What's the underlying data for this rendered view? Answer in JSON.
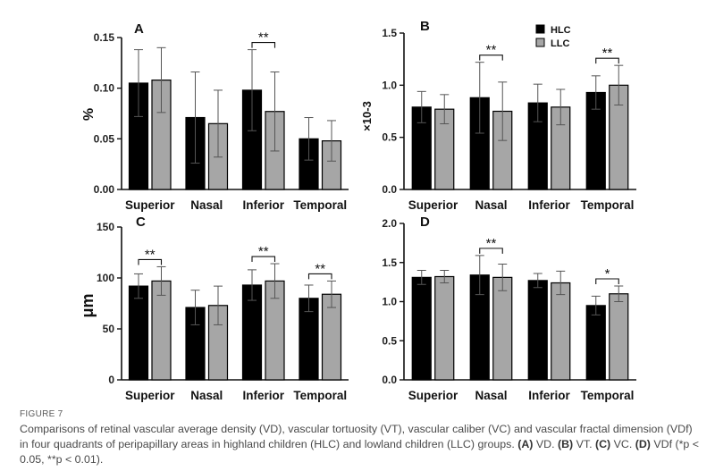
{
  "legend": {
    "entries": [
      {
        "label": "HLC",
        "color": "#000000"
      },
      {
        "label": "LLC",
        "color": "#a6a6a6"
      }
    ]
  },
  "chart_data": [
    {
      "id": "A",
      "type": "bar",
      "letter": "A",
      "ylabel": "%",
      "categories": [
        "Superior",
        "Nasal",
        "Inferior",
        "Temporal"
      ],
      "ylim": [
        0,
        0.15
      ],
      "yticks": [
        "0.00",
        "0.05",
        "0.10",
        "0.15"
      ],
      "series": [
        {
          "name": "HLC",
          "values": [
            0.105,
            0.071,
            0.098,
            0.05
          ],
          "errors": [
            0.033,
            0.045,
            0.04,
            0.021
          ]
        },
        {
          "name": "LLC",
          "values": [
            0.108,
            0.065,
            0.077,
            0.048
          ],
          "errors": [
            0.032,
            0.033,
            0.039,
            0.02
          ]
        }
      ],
      "significance": [
        {
          "category": "Inferior",
          "label": "**"
        }
      ]
    },
    {
      "id": "B",
      "type": "bar",
      "letter": "B",
      "ylabel": "×10-3",
      "categories": [
        "Superior",
        "Nasal",
        "Inferior",
        "Temporal"
      ],
      "ylim": [
        0,
        1.5
      ],
      "yticks": [
        "0.0",
        "0.5",
        "1.0",
        "1.5"
      ],
      "series": [
        {
          "name": "HLC",
          "values": [
            0.79,
            0.88,
            0.83,
            0.93
          ],
          "errors": [
            0.15,
            0.34,
            0.18,
            0.16
          ]
        },
        {
          "name": "LLC",
          "values": [
            0.77,
            0.75,
            0.79,
            1.0
          ],
          "errors": [
            0.14,
            0.28,
            0.17,
            0.19
          ]
        }
      ],
      "significance": [
        {
          "category": "Nasal",
          "label": "**"
        },
        {
          "category": "Temporal",
          "label": "**"
        }
      ]
    },
    {
      "id": "C",
      "type": "bar",
      "letter": "C",
      "ylabel": "μm",
      "categories": [
        "Superior",
        "Nasal",
        "Inferior",
        "Temporal"
      ],
      "ylim": [
        0,
        150
      ],
      "yticks": [
        "0",
        "50",
        "100",
        "150"
      ],
      "series": [
        {
          "name": "HLC",
          "values": [
            92,
            71,
            93,
            80
          ],
          "errors": [
            12,
            17,
            15,
            13
          ]
        },
        {
          "name": "LLC",
          "values": [
            97,
            73,
            97,
            84
          ],
          "errors": [
            14,
            19,
            17,
            13
          ]
        }
      ],
      "significance": [
        {
          "category": "Superior",
          "label": "**"
        },
        {
          "category": "Inferior",
          "label": "**"
        },
        {
          "category": "Temporal",
          "label": "**"
        }
      ]
    },
    {
      "id": "D",
      "type": "bar",
      "letter": "D",
      "ylabel": "",
      "categories": [
        "Superior",
        "Nasal",
        "Inferior",
        "Temporal"
      ],
      "ylim": [
        0,
        2.0
      ],
      "yticks": [
        "0.0",
        "0.5",
        "1.0",
        "1.5",
        "2.0"
      ],
      "series": [
        {
          "name": "HLC",
          "values": [
            1.31,
            1.34,
            1.27,
            0.95
          ],
          "errors": [
            0.09,
            0.25,
            0.09,
            0.12
          ]
        },
        {
          "name": "LLC",
          "values": [
            1.32,
            1.31,
            1.24,
            1.1
          ],
          "errors": [
            0.08,
            0.17,
            0.15,
            0.1
          ]
        }
      ],
      "significance": [
        {
          "category": "Nasal",
          "label": "**"
        },
        {
          "category": "Temporal",
          "label": "*"
        }
      ]
    }
  ],
  "caption": {
    "label": "FIGURE 7",
    "line1": "Comparisons of retinal vascular average density (VD), vascular tortuosity (VT), vascular caliber (VC) and vascular fractal dimension (VDf) in four",
    "line2_text1": "quadrants of peripapillary areas in highland children (HLC) and lowland children (LLC) groups. ",
    "a_ref": "(A)",
    "a_text": " VD. ",
    "b_ref": "(B)",
    "b_text": " VT. ",
    "c_ref": "(C)",
    "c_text": " VC. ",
    "d_ref": "(D)",
    "d_text": " VDf (*p < 0.05, **p < 0.01)."
  }
}
